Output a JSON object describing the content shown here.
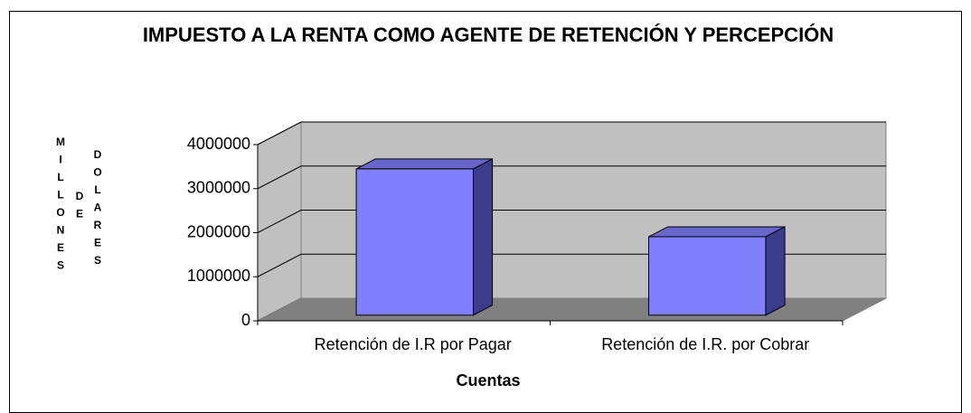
{
  "chart_data": {
    "type": "bar3d",
    "title": "IMPUESTO A LA RENTA COMO AGENTE DE RETENCIÓN Y PERCEPCIÓN",
    "y_label": "MILLONES DE DOLARES",
    "x_label": "Cuentas",
    "categories": [
      "Retención de I.R por Pagar",
      "Retención de I.R. por Cobrar"
    ],
    "values": [
      3320000,
      1780000
    ],
    "color": "#8080ff",
    "ylim": [
      0,
      4000000
    ],
    "yticks": [
      0,
      1000000,
      2000000,
      3000000,
      4000000
    ],
    "grid": true
  }
}
